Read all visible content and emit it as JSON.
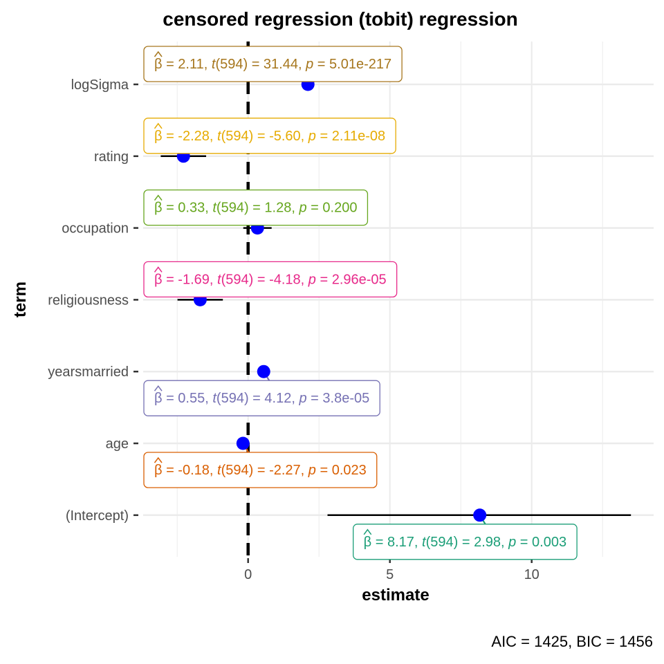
{
  "chart_data": {
    "type": "scatter",
    "title": "censored regression (tobit) regression",
    "xlabel": "estimate",
    "ylabel": "term",
    "caption": "AIC = 1425, BIC = 1456",
    "xlim": [
      -3.7,
      14.3
    ],
    "xticks": [
      0,
      5,
      10
    ],
    "xtick_labels": [
      "0",
      "5",
      "10"
    ],
    "reference_line_x": 0,
    "grid": true,
    "point_color": "#0000ff",
    "terms": [
      {
        "term": "logSigma",
        "estimate": 2.11,
        "conf_low": null,
        "conf_high": null,
        "label": {
          "beta": "2.11",
          "df": "594",
          "t": "31.44",
          "p": "5.01e-217"
        },
        "color": "#a6761d",
        "label_side": "above"
      },
      {
        "term": "rating",
        "estimate": -2.28,
        "conf_low": -3.08,
        "conf_high": -1.48,
        "label": {
          "beta": "-2.28",
          "df": "594",
          "t": "-5.60",
          "p": "2.11e-08"
        },
        "color": "#e6ab02",
        "label_side": "above"
      },
      {
        "term": "occupation",
        "estimate": 0.33,
        "conf_low": -0.17,
        "conf_high": 0.83,
        "label": {
          "beta": "0.33",
          "df": "594",
          "t": "1.28",
          "p": "0.200"
        },
        "color": "#66a61e",
        "label_side": "above"
      },
      {
        "term": "religiousness",
        "estimate": -1.69,
        "conf_low": -2.49,
        "conf_high": -0.89,
        "label": {
          "beta": "-1.69",
          "df": "594",
          "t": "-4.18",
          "p": "2.96e-05"
        },
        "color": "#e7298a",
        "label_side": "above"
      },
      {
        "term": "yearsmarried",
        "estimate": 0.55,
        "conf_low": null,
        "conf_high": null,
        "label": {
          "beta": "0.55",
          "df": "594",
          "t": "4.12",
          "p": "3.8e-05"
        },
        "color": "#7570b3",
        "label_side": "below"
      },
      {
        "term": "age",
        "estimate": -0.18,
        "conf_low": null,
        "conf_high": null,
        "label": {
          "beta": "-0.18",
          "df": "594",
          "t": "-2.27",
          "p": "0.023"
        },
        "color": "#d95f02",
        "label_side": "below"
      },
      {
        "term": "(Intercept)",
        "estimate": 8.17,
        "conf_low": 2.8,
        "conf_high": 13.5,
        "label": {
          "beta": "8.17",
          "df": "594",
          "t": "2.98",
          "p": "0.003"
        },
        "color": "#1b9e77",
        "label_side": "below"
      }
    ]
  }
}
